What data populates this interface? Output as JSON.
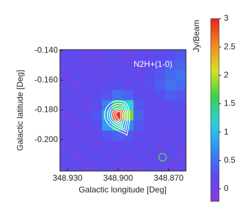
{
  "chart_data": {
    "type": "heatmap",
    "annotation": "N2H+(1-0)",
    "x_label": "Galactic longitude [Deg]",
    "y_label": "Galactic latitude [Deg]",
    "colorbar_label": "Jy/Beam",
    "xlim": [
      348.9345,
      348.8597
    ],
    "ylim": [
      -0.221,
      -0.1395
    ],
    "xticks": [
      {
        "value": 348.93,
        "label": "348.930"
      },
      {
        "value": 348.9,
        "label": "348.900"
      },
      {
        "value": 348.87,
        "label": "348.870"
      }
    ],
    "yticks": [
      {
        "value": -0.14,
        "label": "-0.140"
      },
      {
        "value": -0.16,
        "label": "-0.160"
      },
      {
        "value": -0.18,
        "label": "-0.180"
      },
      {
        "value": -0.2,
        "label": "-0.200"
      }
    ],
    "clim": [
      -0.22,
      3
    ],
    "cticks": [
      0,
      0.5,
      1,
      1.5,
      2,
      2.5,
      3
    ],
    "colormap": [
      "#8a3ad8",
      "#5a4df0",
      "#2e8ff0",
      "#2ad0e0",
      "#39d24a",
      "#d8e01e",
      "#f28a1e",
      "#e8221e"
    ],
    "z": [
      [
        0.15,
        0.2,
        0.1,
        0.15,
        0.2,
        0.15,
        0.1,
        0.2,
        0.15,
        0.2,
        0.25,
        0.3
      ],
      [
        0.2,
        0.15,
        0.15,
        0.1,
        0.15,
        0.2,
        0.15,
        0.15,
        0.2,
        0.25,
        0.35,
        0.4
      ],
      [
        0.1,
        0.2,
        0.15,
        0.2,
        0.15,
        0.15,
        0.2,
        0.1,
        0.2,
        0.3,
        0.45,
        0.5
      ],
      [
        0.15,
        0.1,
        0.2,
        0.15,
        0.2,
        0.25,
        0.15,
        0.2,
        0.25,
        0.35,
        0.5,
        0.45
      ],
      [
        0.2,
        0.15,
        0.15,
        0.2,
        0.3,
        0.5,
        0.4,
        0.2,
        0.15,
        0.25,
        0.35,
        0.3
      ],
      [
        0.15,
        0.2,
        0.1,
        0.25,
        0.6,
        1.5,
        1.2,
        0.3,
        0.2,
        0.15,
        0.2,
        0.25
      ],
      [
        0.1,
        0.15,
        0.2,
        0.3,
        0.9,
        2.9,
        1.8,
        0.4,
        0.15,
        0.2,
        0.15,
        0.2
      ],
      [
        0.2,
        0.1,
        0.15,
        0.25,
        0.8,
        1.3,
        0.7,
        0.3,
        0.2,
        0.15,
        0.2,
        0.15
      ],
      [
        0.15,
        0.2,
        0.15,
        0.15,
        0.3,
        0.4,
        0.3,
        0.2,
        0.15,
        0.2,
        0.1,
        0.2
      ],
      [
        0.1,
        0.15,
        0.2,
        0.1,
        0.2,
        0.15,
        0.2,
        0.15,
        0.2,
        0.1,
        0.15,
        0.15
      ],
      [
        0.2,
        0.1,
        0.15,
        0.2,
        0.15,
        0.2,
        0.1,
        0.2,
        0.15,
        0.15,
        0.2,
        0.1
      ],
      [
        0.15,
        0.2,
        0.1,
        0.15,
        0.2,
        0.1,
        0.15,
        0.1,
        0.2,
        0.15,
        0.1,
        0.15
      ]
    ]
  }
}
